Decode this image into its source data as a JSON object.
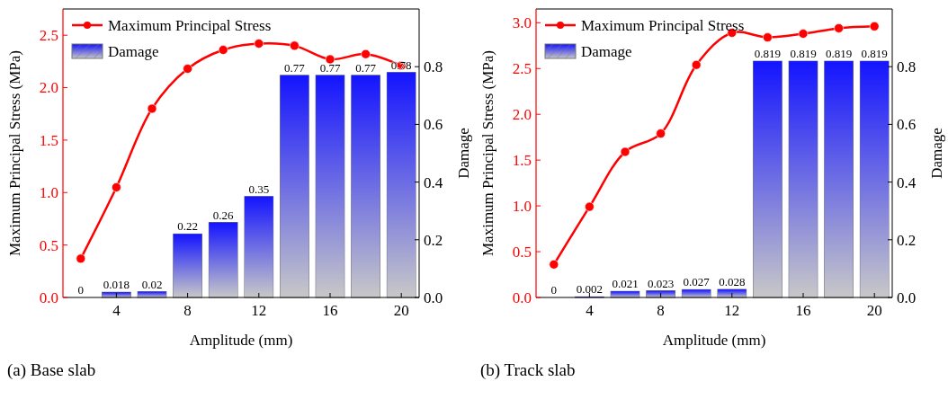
{
  "chart_data": [
    {
      "type": "bar",
      "xlabel": "Amplitude (mm)",
      "ylabel": "Maximum Principal Stress (MPa)",
      "y2label": "Damage",
      "annotations": [
        "(a) Base slab"
      ],
      "x": [
        2,
        4,
        6,
        8,
        10,
        12,
        14,
        16,
        18,
        20
      ],
      "xlim": [
        1,
        21
      ],
      "xticks": [
        4,
        8,
        12,
        16,
        20
      ],
      "ylim": [
        0,
        2.75
      ],
      "yticks": [
        {
          "value": 0,
          "label": "0.0"
        },
        0.5,
        {
          "value": 1,
          "label": "1.0"
        },
        1.5,
        {
          "value": 2,
          "label": "2.0"
        },
        2.5
      ],
      "y2lim": [
        0,
        1
      ],
      "y2ticks": [
        {
          "value": 0,
          "label": "0.0"
        },
        0.2,
        0.4,
        0.6,
        0.8
      ],
      "legend": "top left",
      "marker": "circle",
      "grid": false,
      "series": [
        {
          "name": "Maximum Principal Stress",
          "type": "line",
          "color": "#ff0000",
          "values": [
            0.37,
            1.05,
            1.8,
            2.18,
            2.36,
            2.42,
            2.4,
            2.27,
            2.32,
            2.21
          ]
        },
        {
          "name": "Damage",
          "axis": "y2",
          "color": "#1414ff",
          "values": [
            0,
            0.018,
            0.02,
            0.22,
            0.26,
            0.35,
            0.77,
            0.77,
            0.77,
            0.78
          ],
          "value_labels": [
            "0",
            "0.018",
            "0.02",
            "0.22",
            "0.26",
            "0.35",
            "0.77",
            "0.77",
            "0.77",
            "0.78"
          ]
        }
      ]
    },
    {
      "type": "bar",
      "xlabel": "Amplitude (mm)",
      "ylabel": "Maximum Principal Stress (MPa)",
      "y2label": "Damage",
      "annotations": [
        "(b) Track slab"
      ],
      "x": [
        2,
        4,
        6,
        8,
        10,
        12,
        14,
        16,
        18,
        20
      ],
      "xlim": [
        1,
        21
      ],
      "xticks": [
        4,
        8,
        12,
        16,
        20
      ],
      "ylim": [
        0,
        3.15
      ],
      "yticks": [
        {
          "value": 0,
          "label": "0.0"
        },
        0.5,
        {
          "value": 1,
          "label": "1.0"
        },
        1.5,
        {
          "value": 2,
          "label": "2.0"
        },
        2.5,
        {
          "value": 3,
          "label": "3.0"
        }
      ],
      "y2lim": [
        0,
        1
      ],
      "y2ticks": [
        {
          "value": 0,
          "label": "0.0"
        },
        0.2,
        0.4,
        0.6,
        0.8
      ],
      "legend": "top left",
      "marker": "circle",
      "grid": false,
      "series": [
        {
          "name": "Maximum Principal Stress",
          "type": "line",
          "color": "#ff0000",
          "values": [
            0.36,
            0.99,
            1.59,
            1.79,
            2.54,
            2.89,
            2.84,
            2.88,
            2.94,
            2.96
          ]
        },
        {
          "name": "Damage",
          "axis": "y2",
          "color": "#1414ff",
          "values": [
            0,
            0.002,
            0.021,
            0.023,
            0.027,
            0.028,
            0.819,
            0.819,
            0.819,
            0.819
          ],
          "value_labels": [
            "0",
            "0.002",
            "0.021",
            "0.023",
            "0.027",
            "0.028",
            "0.819",
            "0.819",
            "0.819",
            "0.819"
          ]
        }
      ]
    }
  ]
}
